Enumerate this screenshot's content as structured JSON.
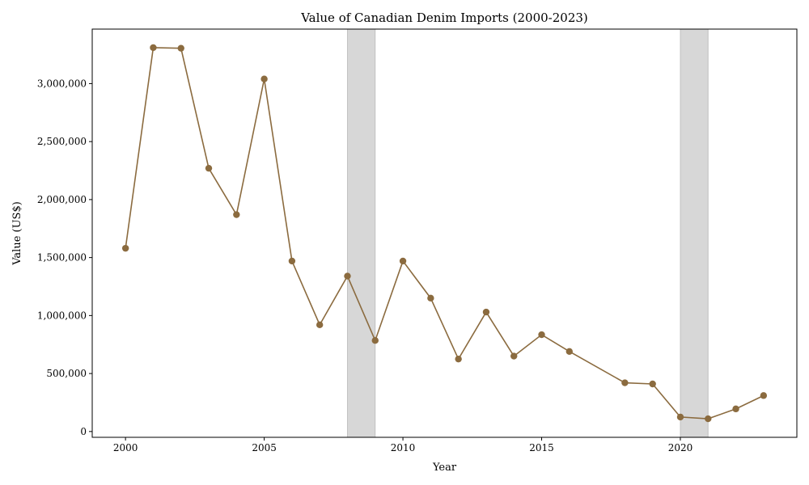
{
  "chart_data": {
    "type": "line",
    "title": "Value of Canadian Denim Imports (2000-2023)",
    "xlabel": "Year",
    "ylabel": "Value (US$)",
    "xlim": [
      1998.8,
      2024.2
    ],
    "ylim": [
      -50000,
      3470000
    ],
    "xticks": [
      2000,
      2005,
      2010,
      2015,
      2020
    ],
    "yticks": [
      0,
      500000,
      1000000,
      1500000,
      2000000,
      2500000,
      3000000
    ],
    "ytick_labels": [
      "0",
      "500,000",
      "1,000,000",
      "1,500,000",
      "2,000,000",
      "2,500,000",
      "3,000,000"
    ],
    "grid": false,
    "line_color": "#8B6B3F",
    "shade_color": "#bdbdbd",
    "shaded_ranges": [
      [
        2008,
        2009
      ],
      [
        2020,
        2021
      ]
    ],
    "series": [
      {
        "x": [
          2000,
          2001,
          2002,
          2003,
          2004,
          2005,
          2006,
          2007,
          2008,
          2009,
          2010,
          2011,
          2012,
          2013,
          2014,
          2015,
          2016,
          2018,
          2019,
          2020,
          2021,
          2022,
          2023
        ],
        "values": [
          1580000,
          3310000,
          3305000,
          2270000,
          1870000,
          3040000,
          1470000,
          920000,
          1340000,
          785000,
          1470000,
          1150000,
          625000,
          1030000,
          650000,
          835000,
          690000,
          420000,
          410000,
          125000,
          110000,
          195000,
          310000
        ]
      }
    ]
  }
}
